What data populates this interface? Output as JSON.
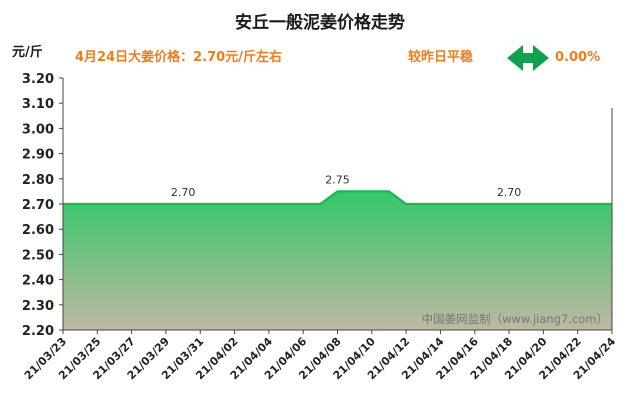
{
  "header": {
    "title": "安丘一般泥姜价格走势",
    "unit": "元/斤",
    "price_note": "4月24日大姜价格：2.70元/斤左右",
    "trend_label": "较昨日平稳",
    "trend_icon": "left-right-arrow-icon",
    "change": "0.00%"
  },
  "watermark": "中国姜网监制（www.jiang7.com）",
  "colors": {
    "accent": "#ee7d1e",
    "arrow": "#12a050",
    "line": "#1fb555",
    "fill_top": "#33c86a",
    "fill_bottom": "#c0b8a2"
  },
  "chart_data": {
    "type": "area",
    "title": "安丘一般泥姜价格走势",
    "ylabel": "元/斤",
    "xlabel": "",
    "ylim": [
      2.2,
      3.2
    ],
    "yticks": [
      "3.20",
      "3.10",
      "3.00",
      "2.90",
      "2.80",
      "2.70",
      "2.60",
      "2.50",
      "2.40",
      "2.30",
      "2.20"
    ],
    "xticks": [
      "21/03/23",
      "21/03/25",
      "21/03/27",
      "21/03/29",
      "21/03/31",
      "21/04/02",
      "21/04/04",
      "21/04/06",
      "21/04/08",
      "21/04/10",
      "21/04/12",
      "21/04/14",
      "21/04/16",
      "21/04/18",
      "21/04/20",
      "21/04/22",
      "21/04/24"
    ],
    "x": [
      "21/03/23",
      "21/03/24",
      "21/03/25",
      "21/03/26",
      "21/03/27",
      "21/03/28",
      "21/03/29",
      "21/03/30",
      "21/03/31",
      "21/04/01",
      "21/04/02",
      "21/04/03",
      "21/04/04",
      "21/04/05",
      "21/04/06",
      "21/04/07",
      "21/04/08",
      "21/04/09",
      "21/04/10",
      "21/04/11",
      "21/04/12",
      "21/04/13",
      "21/04/14",
      "21/04/15",
      "21/04/16",
      "21/04/17",
      "21/04/18",
      "21/04/19",
      "21/04/20",
      "21/04/21",
      "21/04/22",
      "21/04/23",
      "21/04/24"
    ],
    "values": [
      2.7,
      2.7,
      2.7,
      2.7,
      2.7,
      2.7,
      2.7,
      2.7,
      2.7,
      2.7,
      2.7,
      2.7,
      2.7,
      2.7,
      2.7,
      2.7,
      2.75,
      2.75,
      2.75,
      2.75,
      2.7,
      2.7,
      2.7,
      2.7,
      2.7,
      2.7,
      2.7,
      2.7,
      2.7,
      2.7,
      2.7,
      2.7,
      2.7
    ],
    "data_labels": [
      {
        "date": "21/03/30",
        "value": 2.7,
        "text": "2.70"
      },
      {
        "date": "21/04/08",
        "value": 2.75,
        "text": "2.75"
      },
      {
        "date": "21/04/18",
        "value": 2.7,
        "text": "2.70"
      }
    ],
    "grid": false,
    "legend": "none"
  }
}
